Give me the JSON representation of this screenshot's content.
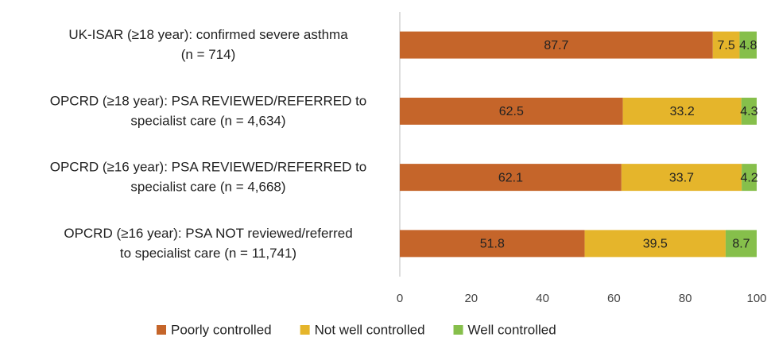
{
  "chart_data": {
    "type": "bar",
    "stacked": true,
    "orientation": "horizontal",
    "categories": [
      [
        "UK-ISAR (≥18 year): confirmed severe asthma",
        "(n = 714)"
      ],
      [
        "OPCRD (≥18 year): PSA REVIEWED/REFERRED to",
        "specialist care (n = 4,634)"
      ],
      [
        "OPCRD (≥16 year): PSA REVIEWED/REFERRED to",
        "specialist care (n = 4,668)"
      ],
      [
        "OPCRD (≥16 year): PSA NOT reviewed/referred",
        "to specialist care (n = 11,741)"
      ]
    ],
    "series": [
      {
        "name": "Poorly controlled",
        "color": "#c5652a",
        "values": [
          87.7,
          62.5,
          62.1,
          51.8
        ]
      },
      {
        "name": "Not well controlled",
        "color": "#e5b52b",
        "values": [
          7.5,
          33.2,
          33.7,
          39.5
        ]
      },
      {
        "name": "Well controlled",
        "color": "#86bf4b",
        "values": [
          4.8,
          4.3,
          4.2,
          8.7
        ]
      }
    ],
    "xlim": [
      0,
      100
    ],
    "xticks": [
      0,
      20,
      40,
      60,
      80,
      100
    ],
    "grid": false,
    "legend": "bottom"
  }
}
